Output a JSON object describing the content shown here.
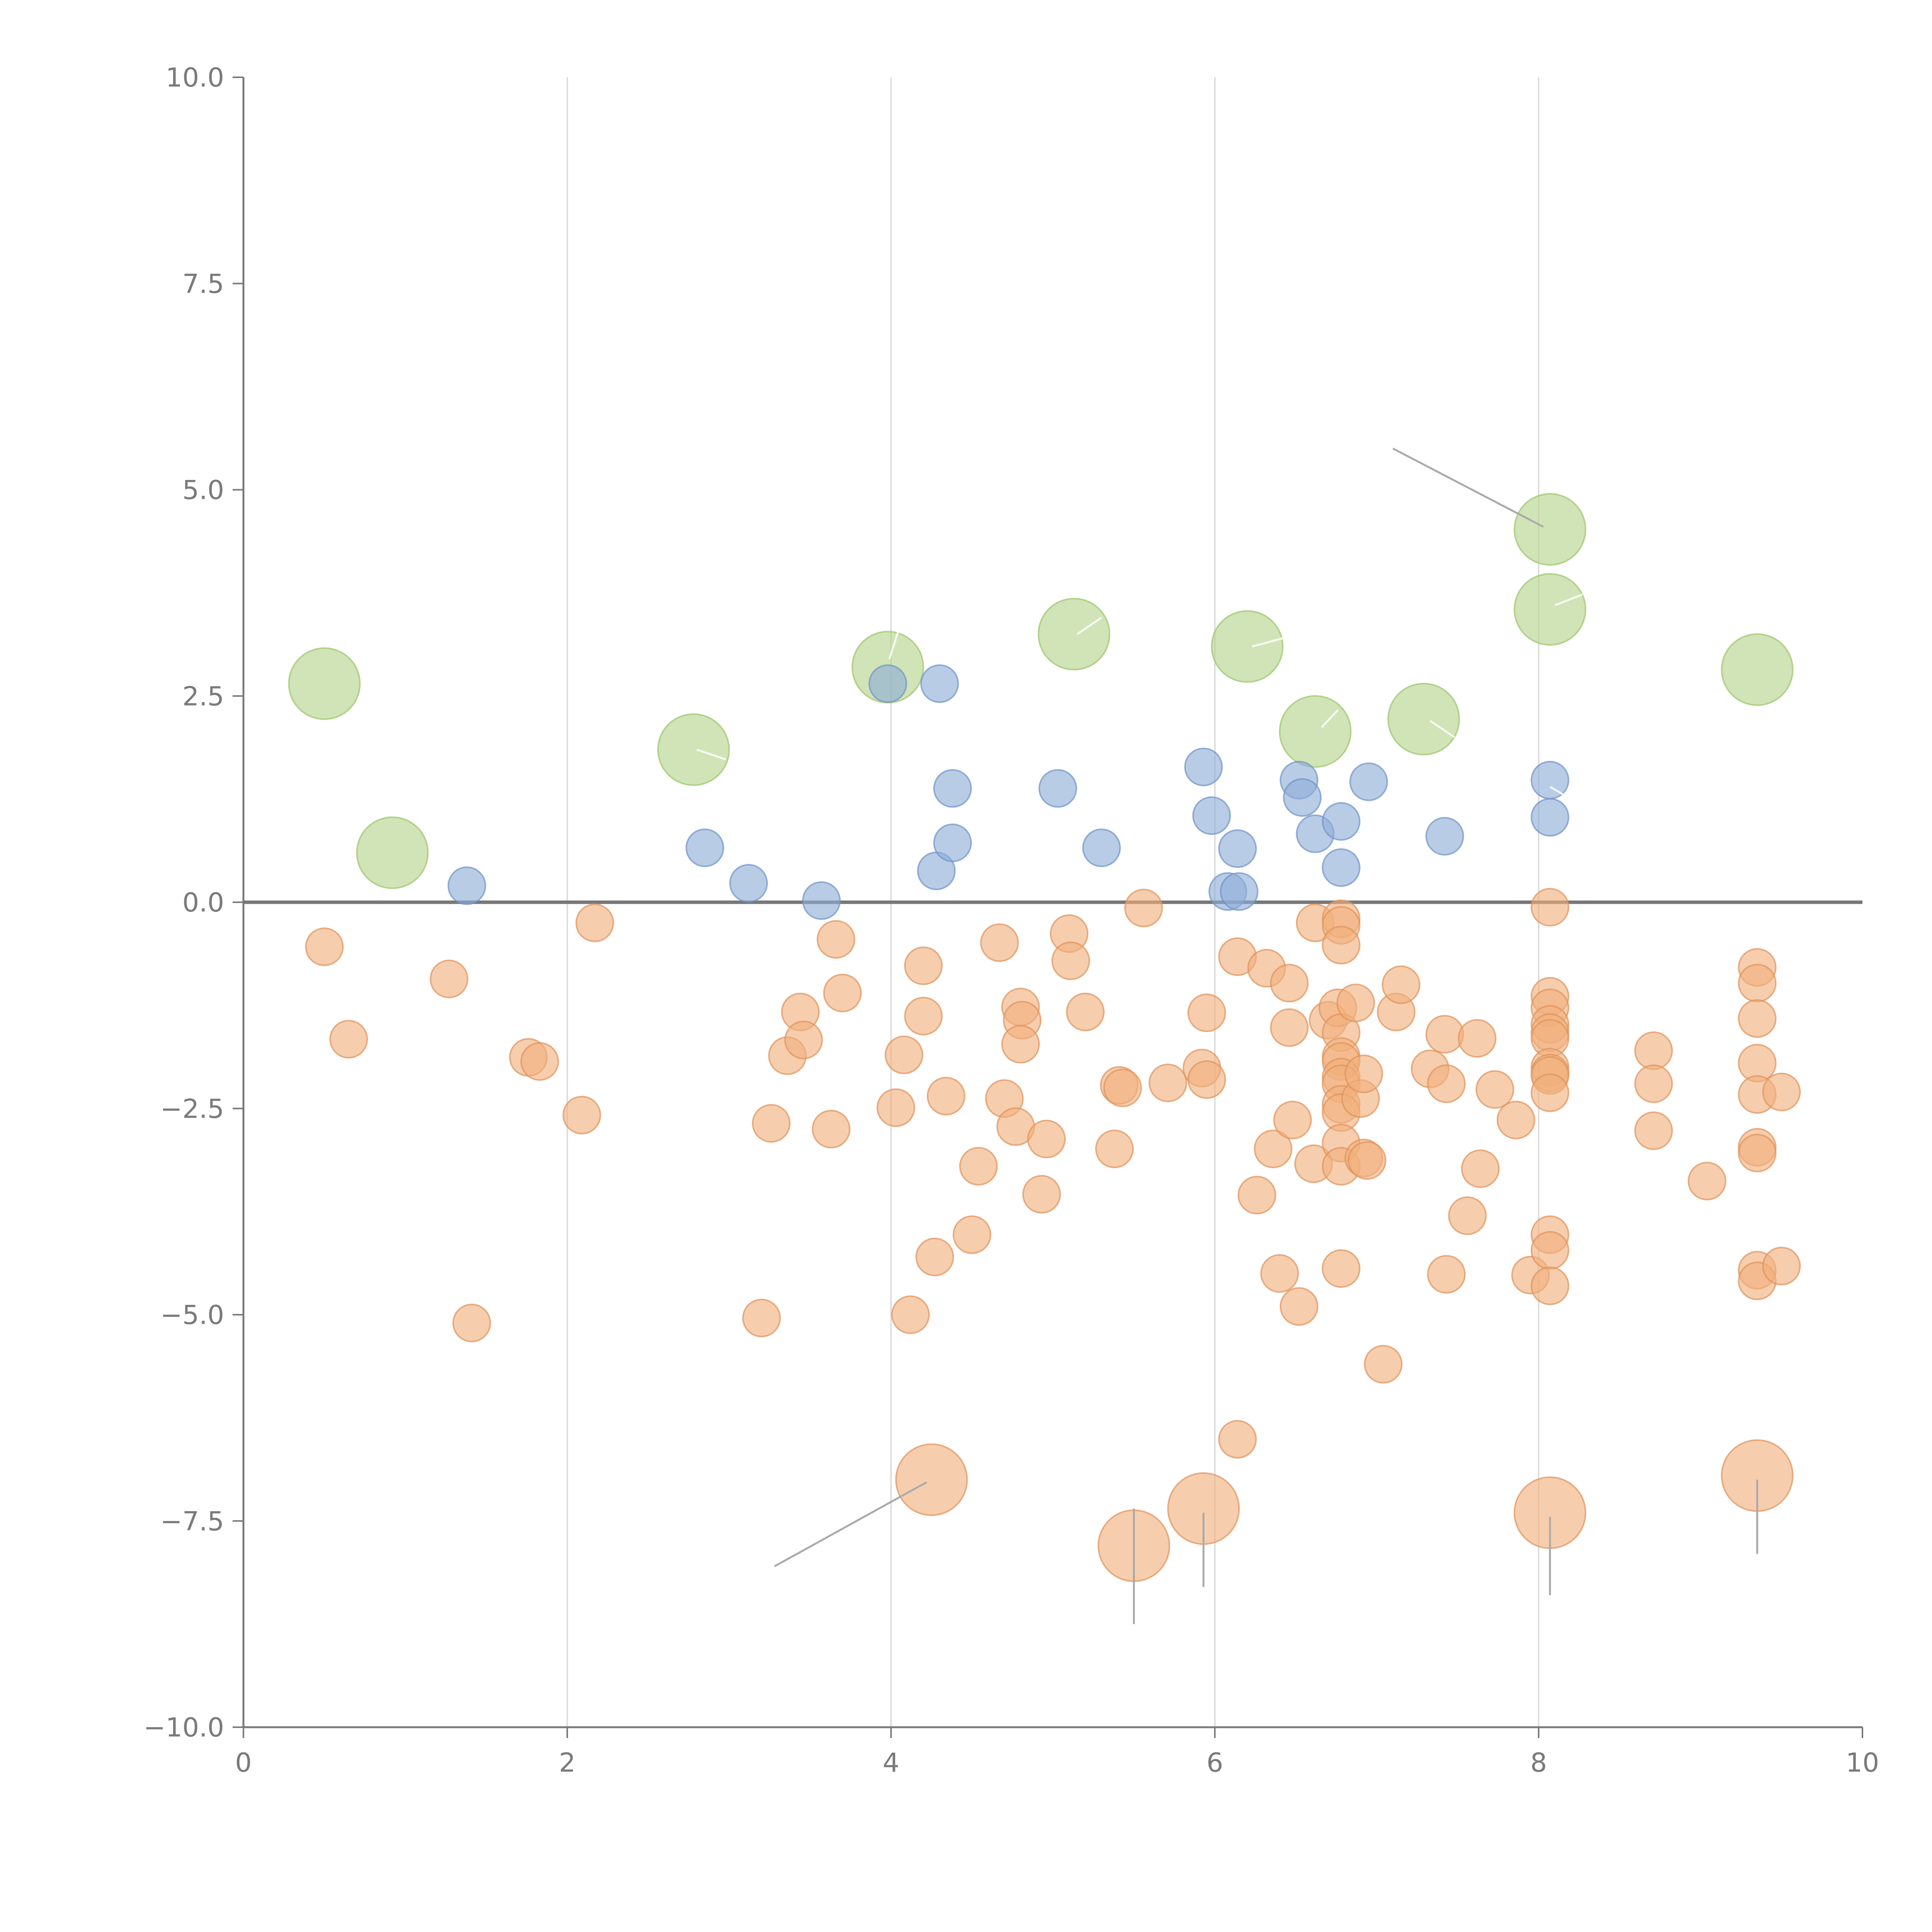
{
  "chart_data": {
    "type": "scatter",
    "title": "",
    "xlabel": "",
    "ylabel": "",
    "xlim": [
      0,
      10
    ],
    "ylim": [
      -10,
      10
    ],
    "x_ticks": [
      {
        "value": 0,
        "label": "0"
      },
      {
        "value": 2,
        "label": "2"
      },
      {
        "value": 4,
        "label": "4"
      },
      {
        "value": 6,
        "label": "6"
      },
      {
        "value": 8,
        "label": "8"
      },
      {
        "value": 10,
        "label": "10"
      }
    ],
    "y_ticks": [
      {
        "value": 10,
        "label": "10.0"
      },
      {
        "value": 7.5,
        "label": "7.5"
      },
      {
        "value": 5,
        "label": "5.0"
      },
      {
        "value": 2.5,
        "label": "2.5"
      },
      {
        "value": 0,
        "label": "0.0"
      },
      {
        "value": -2.5,
        "label": "−2.5"
      },
      {
        "value": -5,
        "label": "−5.0"
      },
      {
        "value": -7.5,
        "label": "−7.5"
      },
      {
        "value": -10,
        "label": "−10.0"
      }
    ],
    "vertical_gridlines_at": [
      2,
      4,
      6,
      8
    ],
    "zero_line_y": 0,
    "series": [
      {
        "name": "green",
        "color": "#b5d38a",
        "stroke": "#9cc46a",
        "size": "large",
        "points": [
          {
            "x": 0.5,
            "y": 2.65
          },
          {
            "x": 0.92,
            "y": 0.6
          },
          {
            "x": 2.78,
            "y": 1.85
          },
          {
            "x": 3.98,
            "y": 2.85
          },
          {
            "x": 5.13,
            "y": 3.25
          },
          {
            "x": 6.2,
            "y": 3.1
          },
          {
            "x": 6.62,
            "y": 2.07
          },
          {
            "x": 7.29,
            "y": 2.22
          },
          {
            "x": 8.07,
            "y": 4.52
          },
          {
            "x": 8.07,
            "y": 3.55
          },
          {
            "x": 9.35,
            "y": 2.82
          }
        ]
      },
      {
        "name": "blue",
        "color": "#8eacd6",
        "stroke": "#6f93c8",
        "size": "small",
        "points": [
          {
            "x": 1.38,
            "y": 0.2
          },
          {
            "x": 2.85,
            "y": 0.66
          },
          {
            "x": 3.12,
            "y": 0.23
          },
          {
            "x": 3.57,
            "y": 0.02
          },
          {
            "x": 3.98,
            "y": 2.65
          },
          {
            "x": 4.3,
            "y": 2.65
          },
          {
            "x": 4.28,
            "y": 0.38
          },
          {
            "x": 4.38,
            "y": 1.38
          },
          {
            "x": 4.38,
            "y": 0.72
          },
          {
            "x": 5.03,
            "y": 1.38
          },
          {
            "x": 5.3,
            "y": 0.66
          },
          {
            "x": 5.93,
            "y": 1.64
          },
          {
            "x": 5.98,
            "y": 1.05
          },
          {
            "x": 6.08,
            "y": 0.13
          },
          {
            "x": 6.15,
            "y": 0.13
          },
          {
            "x": 6.14,
            "y": 0.65
          },
          {
            "x": 6.52,
            "y": 1.48
          },
          {
            "x": 6.54,
            "y": 1.27
          },
          {
            "x": 6.62,
            "y": 0.83
          },
          {
            "x": 6.78,
            "y": 0.98
          },
          {
            "x": 6.78,
            "y": 0.42
          },
          {
            "x": 6.95,
            "y": 1.46
          },
          {
            "x": 7.42,
            "y": 0.8
          },
          {
            "x": 8.07,
            "y": 1.48
          },
          {
            "x": 8.07,
            "y": 1.03
          }
        ]
      },
      {
        "name": "orange",
        "color": "#f0b07c",
        "stroke": "#e0925a",
        "size": "small",
        "points": [
          {
            "x": 0.5,
            "y": -0.54
          },
          {
            "x": 0.65,
            "y": -1.66
          },
          {
            "x": 1.27,
            "y": -0.93
          },
          {
            "x": 1.41,
            "y": -5.1
          },
          {
            "x": 1.76,
            "y": -1.88
          },
          {
            "x": 1.83,
            "y": -1.93
          },
          {
            "x": 2.09,
            "y": -2.58
          },
          {
            "x": 2.17,
            "y": -0.25
          },
          {
            "x": 3.2,
            "y": -5.04
          },
          {
            "x": 3.26,
            "y": -2.68
          },
          {
            "x": 3.36,
            "y": -1.86
          },
          {
            "x": 3.44,
            "y": -1.33
          },
          {
            "x": 3.46,
            "y": -1.67
          },
          {
            "x": 3.63,
            "y": -2.75
          },
          {
            "x": 3.66,
            "y": -0.45
          },
          {
            "x": 3.7,
            "y": -1.1
          },
          {
            "x": 4.03,
            "y": -2.49
          },
          {
            "x": 4.08,
            "y": -1.85
          },
          {
            "x": 4.12,
            "y": -5.0
          },
          {
            "x": 4.2,
            "y": -0.77
          },
          {
            "x": 4.2,
            "y": -1.38
          },
          {
            "x": 4.27,
            "y": -4.3
          },
          {
            "x": 4.34,
            "y": -2.35
          },
          {
            "x": 4.5,
            "y": -4.03
          },
          {
            "x": 4.54,
            "y": -3.2
          },
          {
            "x": 4.67,
            "y": -0.49
          },
          {
            "x": 4.7,
            "y": -2.38
          },
          {
            "x": 4.77,
            "y": -2.72
          },
          {
            "x": 4.8,
            "y": -1.27
          },
          {
            "x": 4.81,
            "y": -1.43
          },
          {
            "x": 4.8,
            "y": -1.72
          },
          {
            "x": 4.93,
            "y": -3.54
          },
          {
            "x": 4.96,
            "y": -2.87
          },
          {
            "x": 5.1,
            "y": -0.38
          },
          {
            "x": 5.11,
            "y": -0.71
          },
          {
            "x": 5.2,
            "y": -1.33
          },
          {
            "x": 5.38,
            "y": -2.99
          },
          {
            "x": 5.41,
            "y": -2.22
          },
          {
            "x": 5.43,
            "y": -2.25
          },
          {
            "x": 5.56,
            "y": -0.07
          },
          {
            "x": 5.71,
            "y": -2.19
          },
          {
            "x": 5.92,
            "y": -2.01
          },
          {
            "x": 5.95,
            "y": -2.15
          },
          {
            "x": 5.95,
            "y": -1.34
          },
          {
            "x": 6.14,
            "y": -6.51
          },
          {
            "x": 6.14,
            "y": -0.66
          },
          {
            "x": 6.26,
            "y": -3.55
          },
          {
            "x": 6.32,
            "y": -0.8
          },
          {
            "x": 6.36,
            "y": -2.99
          },
          {
            "x": 6.4,
            "y": -4.5
          },
          {
            "x": 6.46,
            "y": -0.98
          },
          {
            "x": 6.46,
            "y": -1.52
          },
          {
            "x": 6.48,
            "y": -2.64
          },
          {
            "x": 6.52,
            "y": -4.9
          },
          {
            "x": 6.61,
            "y": -3.17
          },
          {
            "x": 6.62,
            "y": -0.25
          },
          {
            "x": 6.7,
            "y": -1.43
          },
          {
            "x": 6.76,
            "y": -1.28
          },
          {
            "x": 6.78,
            "y": -0.2
          },
          {
            "x": 6.78,
            "y": -0.28
          },
          {
            "x": 6.78,
            "y": -0.52
          },
          {
            "x": 6.78,
            "y": -1.58
          },
          {
            "x": 6.78,
            "y": -1.87
          },
          {
            "x": 6.78,
            "y": -1.93
          },
          {
            "x": 6.78,
            "y": -2.12
          },
          {
            "x": 6.78,
            "y": -2.2
          },
          {
            "x": 6.78,
            "y": -2.45
          },
          {
            "x": 6.78,
            "y": -2.55
          },
          {
            "x": 6.78,
            "y": -2.92
          },
          {
            "x": 6.78,
            "y": -3.2
          },
          {
            "x": 6.78,
            "y": -4.44
          },
          {
            "x": 6.87,
            "y": -1.22
          },
          {
            "x": 6.9,
            "y": -2.38
          },
          {
            "x": 6.92,
            "y": -2.08
          },
          {
            "x": 6.92,
            "y": -3.1
          },
          {
            "x": 6.94,
            "y": -3.13
          },
          {
            "x": 7.04,
            "y": -5.6
          },
          {
            "x": 7.12,
            "y": -1.33
          },
          {
            "x": 7.15,
            "y": -1.0
          },
          {
            "x": 7.33,
            "y": -2.02
          },
          {
            "x": 7.42,
            "y": -1.6
          },
          {
            "x": 7.43,
            "y": -2.2
          },
          {
            "x": 7.43,
            "y": -4.51
          },
          {
            "x": 7.56,
            "y": -3.8
          },
          {
            "x": 7.62,
            "y": -1.65
          },
          {
            "x": 7.64,
            "y": -3.23
          },
          {
            "x": 7.73,
            "y": -2.27
          },
          {
            "x": 7.86,
            "y": -2.64
          },
          {
            "x": 7.95,
            "y": -4.52
          },
          {
            "x": 8.07,
            "y": -0.06
          },
          {
            "x": 8.07,
            "y": -1.14
          },
          {
            "x": 8.07,
            "y": -1.28
          },
          {
            "x": 8.07,
            "y": -1.48
          },
          {
            "x": 8.07,
            "y": -1.58
          },
          {
            "x": 8.07,
            "y": -1.65
          },
          {
            "x": 8.07,
            "y": -2.0
          },
          {
            "x": 8.07,
            "y": -2.07
          },
          {
            "x": 8.07,
            "y": -2.1
          },
          {
            "x": 8.07,
            "y": -2.31
          },
          {
            "x": 8.07,
            "y": -4.03
          },
          {
            "x": 8.07,
            "y": -4.22
          },
          {
            "x": 8.07,
            "y": -4.65
          },
          {
            "x": 8.71,
            "y": -1.8
          },
          {
            "x": 8.71,
            "y": -2.2
          },
          {
            "x": 8.71,
            "y": -2.77
          },
          {
            "x": 9.04,
            "y": -3.38
          },
          {
            "x": 9.35,
            "y": -0.79
          },
          {
            "x": 9.35,
            "y": -0.98
          },
          {
            "x": 9.35,
            "y": -1.41
          },
          {
            "x": 9.35,
            "y": -1.95
          },
          {
            "x": 9.35,
            "y": -2.33
          },
          {
            "x": 9.35,
            "y": -2.97
          },
          {
            "x": 9.35,
            "y": -3.04
          },
          {
            "x": 9.35,
            "y": -4.46
          },
          {
            "x": 9.35,
            "y": -4.59
          },
          {
            "x": 9.5,
            "y": -2.3
          },
          {
            "x": 9.5,
            "y": -4.41
          }
        ]
      },
      {
        "name": "orange-large",
        "color": "#f0b07c",
        "stroke": "#e0925a",
        "size": "large",
        "points": [
          {
            "x": 4.25,
            "y": -7.0
          },
          {
            "x": 5.5,
            "y": -7.8
          },
          {
            "x": 5.93,
            "y": -7.35
          },
          {
            "x": 8.07,
            "y": -7.4
          },
          {
            "x": 9.35,
            "y": -6.95
          }
        ]
      }
    ],
    "annotation_lines": [
      {
        "color": "#aaaaaa",
        "x1": 7.1,
        "y1": 5.5,
        "x2": 8.03,
        "y2": 4.55
      },
      {
        "color": "#aaaaaa",
        "x1": 3.28,
        "y1": -8.05,
        "x2": 4.22,
        "y2": -7.03
      },
      {
        "color": "#aaaaaa",
        "x1": 5.5,
        "y1": -7.35,
        "x2": 5.5,
        "y2": -8.75
      },
      {
        "color": "#aaaaaa",
        "x1": 5.93,
        "y1": -7.4,
        "x2": 5.93,
        "y2": -8.3
      },
      {
        "color": "#aaaaaa",
        "x1": 8.07,
        "y1": -7.45,
        "x2": 8.07,
        "y2": -8.4
      },
      {
        "color": "#aaaaaa",
        "x1": 9.35,
        "y1": -7.0,
        "x2": 9.35,
        "y2": -7.9
      },
      {
        "color": "#ffffff",
        "x1": 2.8,
        "y1": 1.85,
        "x2": 2.98,
        "y2": 1.73
      },
      {
        "color": "#ffffff",
        "x1": 3.99,
        "y1": 2.95,
        "x2": 4.08,
        "y2": 3.5
      },
      {
        "color": "#ffffff",
        "x1": 5.15,
        "y1": 3.25,
        "x2": 5.3,
        "y2": 3.45
      },
      {
        "color": "#ffffff",
        "x1": 6.23,
        "y1": 3.1,
        "x2": 6.42,
        "y2": 3.2
      },
      {
        "color": "#ffffff",
        "x1": 6.66,
        "y1": 2.12,
        "x2": 6.76,
        "y2": 2.33
      },
      {
        "color": "#ffffff",
        "x1": 7.33,
        "y1": 2.2,
        "x2": 7.48,
        "y2": 2.0
      },
      {
        "color": "#ffffff",
        "x1": 8.1,
        "y1": 3.6,
        "x2": 8.27,
        "y2": 3.73
      },
      {
        "color": "#ffffff",
        "x1": 8.07,
        "y1": 1.4,
        "x2": 8.2,
        "y2": 1.25
      }
    ]
  }
}
